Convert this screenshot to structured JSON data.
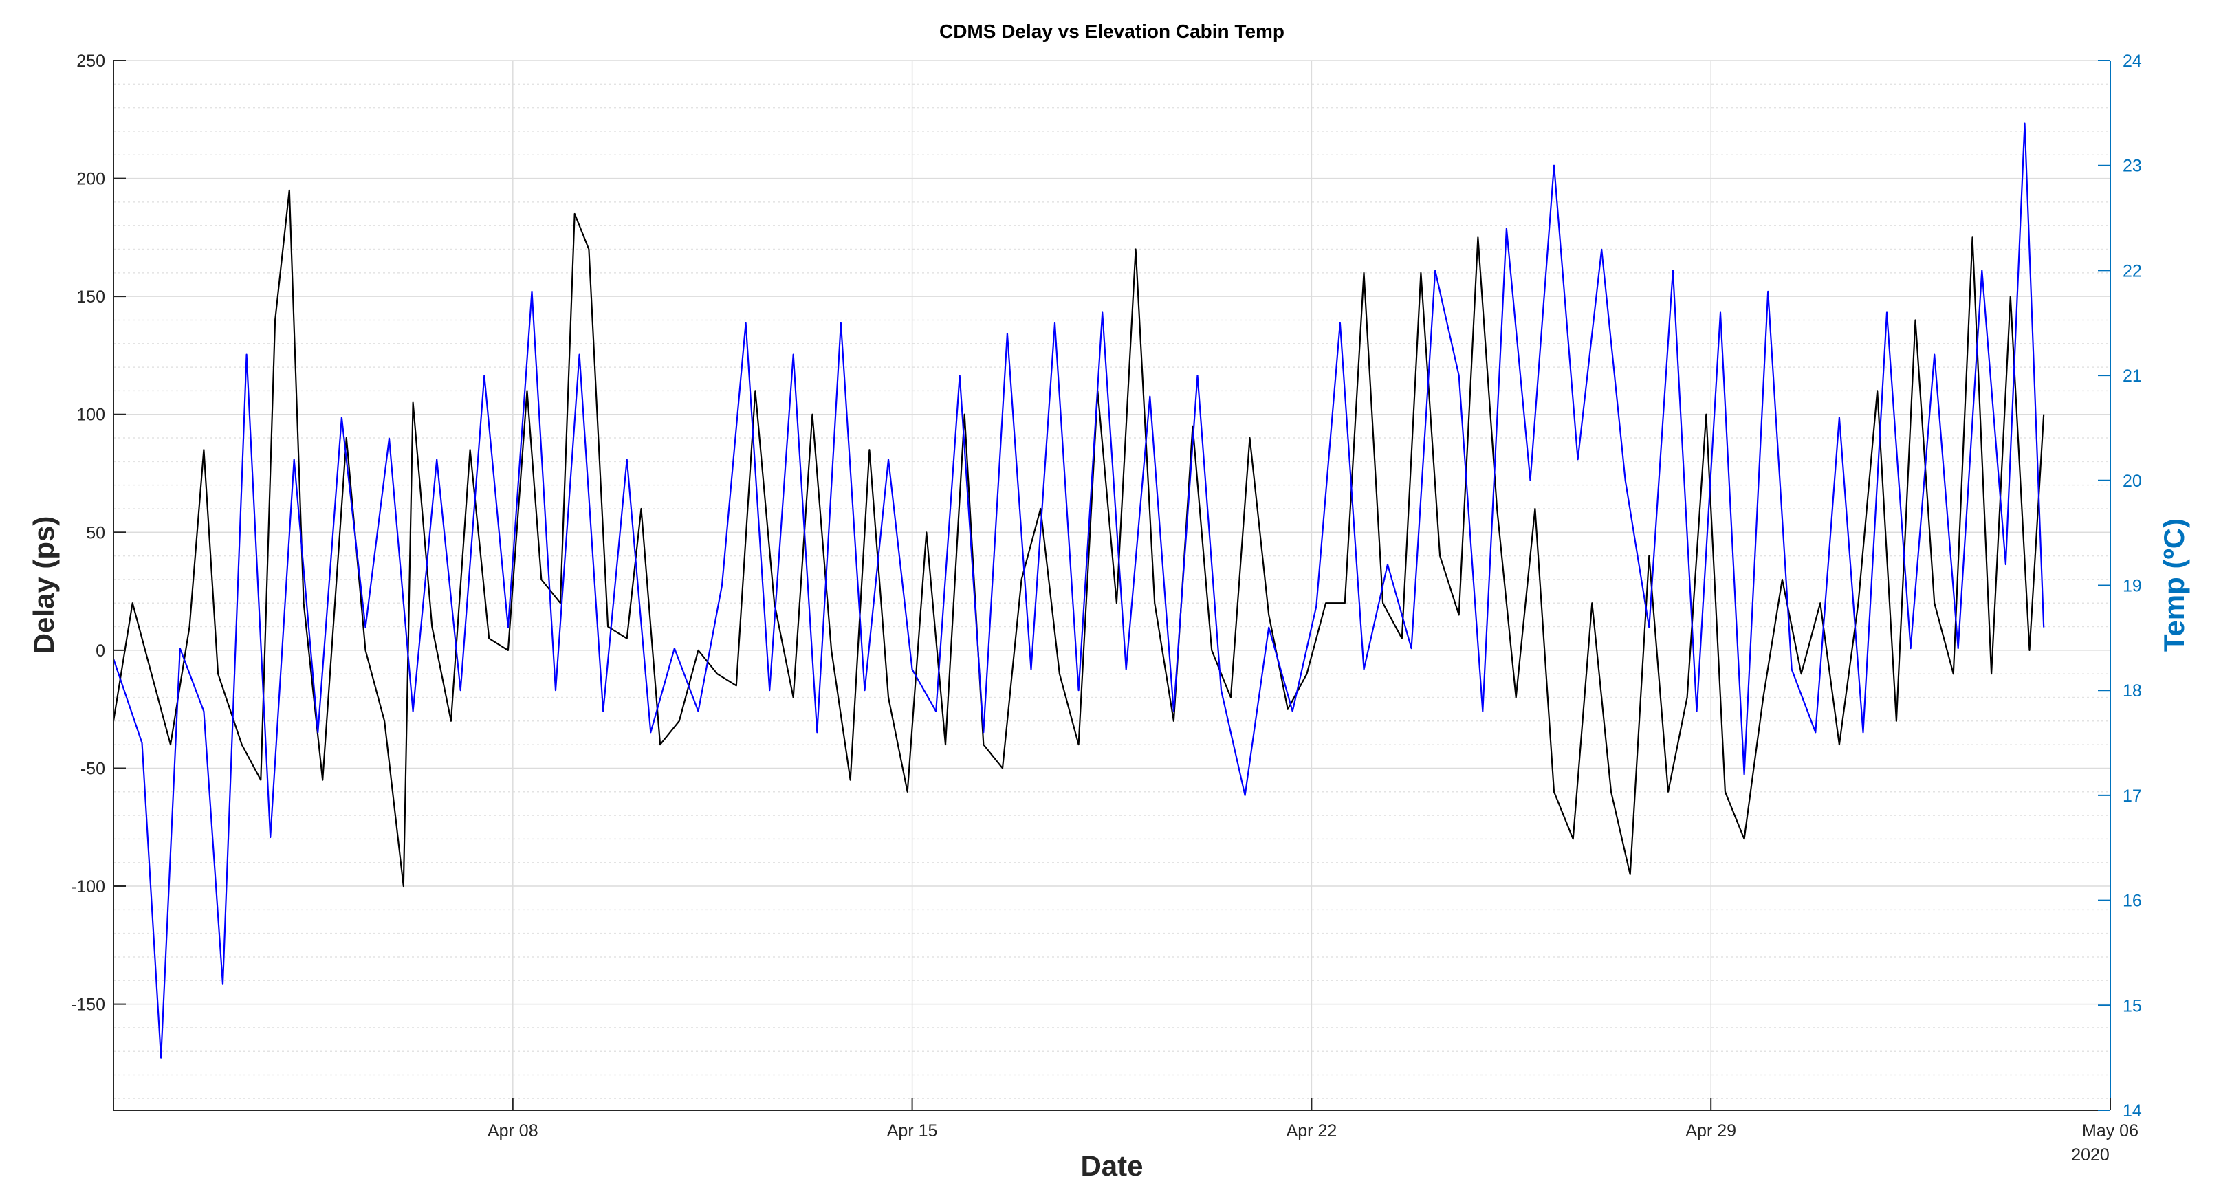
{
  "chart_data": {
    "type": "line",
    "title": "CDMS Delay vs Elevation Cabin Temp",
    "xlabel": "Date",
    "x_year_label": "2020",
    "x_axis": {
      "start": "2020-04-01",
      "end": "2020-05-06",
      "tick_dates": [
        "2020-04-08",
        "2020-04-15",
        "2020-04-22",
        "2020-04-29",
        "2020-05-06"
      ],
      "tick_labels": [
        "Apr 08",
        "Apr 15",
        "Apr 22",
        "Apr 29",
        "May 06"
      ]
    },
    "y_left": {
      "label": "Delay (ps)",
      "lim": [
        -195,
        250
      ],
      "ticks": [
        -150,
        -100,
        -50,
        0,
        50,
        100,
        150,
        200,
        250
      ],
      "color": "#262626"
    },
    "y_right": {
      "label": "Temp (ºC)",
      "lim": [
        14,
        24
      ],
      "ticks": [
        14,
        15,
        16,
        17,
        18,
        19,
        20,
        21,
        22,
        23,
        24
      ],
      "color": "#0072BD"
    },
    "grid": "on",
    "minor_grid": "on",
    "series": [
      {
        "axis": "left",
        "color": "#000000",
        "points": [
          [
            "2020-04-01 00:00",
            -30
          ],
          [
            "2020-04-01 08:00",
            20
          ],
          [
            "2020-04-01 16:00",
            -10
          ],
          [
            "2020-04-02 00:00",
            -40
          ],
          [
            "2020-04-02 08:00",
            10
          ],
          [
            "2020-04-02 14:00",
            85
          ],
          [
            "2020-04-02 20:00",
            -10
          ],
          [
            "2020-04-03 06:00",
            -40
          ],
          [
            "2020-04-03 14:00",
            -55
          ],
          [
            "2020-04-03 20:00",
            140
          ],
          [
            "2020-04-04 02:00",
            195
          ],
          [
            "2020-04-04 08:00",
            20
          ],
          [
            "2020-04-04 16:00",
            -55
          ],
          [
            "2020-04-05 02:00",
            90
          ],
          [
            "2020-04-05 10:00",
            0
          ],
          [
            "2020-04-05 18:00",
            -30
          ],
          [
            "2020-04-06 02:00",
            -100
          ],
          [
            "2020-04-06 06:00",
            105
          ],
          [
            "2020-04-06 14:00",
            10
          ],
          [
            "2020-04-06 22:00",
            -30
          ],
          [
            "2020-04-07 06:00",
            85
          ],
          [
            "2020-04-07 14:00",
            5
          ],
          [
            "2020-04-07 22:00",
            0
          ],
          [
            "2020-04-08 06:00",
            110
          ],
          [
            "2020-04-08 12:00",
            30
          ],
          [
            "2020-04-08 20:00",
            20
          ],
          [
            "2020-04-09 02:00",
            185
          ],
          [
            "2020-04-09 08:00",
            170
          ],
          [
            "2020-04-09 16:00",
            10
          ],
          [
            "2020-04-10 00:00",
            5
          ],
          [
            "2020-04-10 06:00",
            60
          ],
          [
            "2020-04-10 14:00",
            -40
          ],
          [
            "2020-04-10 22:00",
            -30
          ],
          [
            "2020-04-11 06:00",
            0
          ],
          [
            "2020-04-11 14:00",
            -10
          ],
          [
            "2020-04-11 22:00",
            -15
          ],
          [
            "2020-04-12 06:00",
            110
          ],
          [
            "2020-04-12 14:00",
            20
          ],
          [
            "2020-04-12 22:00",
            -20
          ],
          [
            "2020-04-13 06:00",
            100
          ],
          [
            "2020-04-13 14:00",
            0
          ],
          [
            "2020-04-13 22:00",
            -55
          ],
          [
            "2020-04-14 06:00",
            85
          ],
          [
            "2020-04-14 14:00",
            -20
          ],
          [
            "2020-04-14 22:00",
            -60
          ],
          [
            "2020-04-15 06:00",
            50
          ],
          [
            "2020-04-15 14:00",
            -40
          ],
          [
            "2020-04-15 22:00",
            100
          ],
          [
            "2020-04-16 06:00",
            -40
          ],
          [
            "2020-04-16 14:00",
            -50
          ],
          [
            "2020-04-16 22:00",
            30
          ],
          [
            "2020-04-17 06:00",
            60
          ],
          [
            "2020-04-17 14:00",
            -10
          ],
          [
            "2020-04-17 22:00",
            -40
          ],
          [
            "2020-04-18 06:00",
            110
          ],
          [
            "2020-04-18 14:00",
            20
          ],
          [
            "2020-04-18 22:00",
            170
          ],
          [
            "2020-04-19 06:00",
            20
          ],
          [
            "2020-04-19 14:00",
            -30
          ],
          [
            "2020-04-19 22:00",
            95
          ],
          [
            "2020-04-20 06:00",
            0
          ],
          [
            "2020-04-20 14:00",
            -20
          ],
          [
            "2020-04-20 22:00",
            90
          ],
          [
            "2020-04-21 06:00",
            15
          ],
          [
            "2020-04-21 14:00",
            -25
          ],
          [
            "2020-04-21 22:00",
            -10
          ],
          [
            "2020-04-22 06:00",
            20
          ],
          [
            "2020-04-22 14:00",
            20
          ],
          [
            "2020-04-22 22:00",
            160
          ],
          [
            "2020-04-23 06:00",
            20
          ],
          [
            "2020-04-23 14:00",
            5
          ],
          [
            "2020-04-23 22:00",
            160
          ],
          [
            "2020-04-24 06:00",
            40
          ],
          [
            "2020-04-24 14:00",
            15
          ],
          [
            "2020-04-24 22:00",
            175
          ],
          [
            "2020-04-25 06:00",
            60
          ],
          [
            "2020-04-25 14:00",
            -20
          ],
          [
            "2020-04-25 22:00",
            60
          ],
          [
            "2020-04-26 06:00",
            -60
          ],
          [
            "2020-04-26 14:00",
            -80
          ],
          [
            "2020-04-26 22:00",
            20
          ],
          [
            "2020-04-27 06:00",
            -60
          ],
          [
            "2020-04-27 14:00",
            -95
          ],
          [
            "2020-04-27 22:00",
            40
          ],
          [
            "2020-04-28 06:00",
            -60
          ],
          [
            "2020-04-28 14:00",
            -20
          ],
          [
            "2020-04-28 22:00",
            100
          ],
          [
            "2020-04-29 06:00",
            -60
          ],
          [
            "2020-04-29 14:00",
            -80
          ],
          [
            "2020-04-29 22:00",
            -20
          ],
          [
            "2020-04-30 06:00",
            30
          ],
          [
            "2020-04-30 14:00",
            -10
          ],
          [
            "2020-04-30 22:00",
            20
          ],
          [
            "2020-05-01 06:00",
            -40
          ],
          [
            "2020-05-01 14:00",
            20
          ],
          [
            "2020-05-01 22:00",
            110
          ],
          [
            "2020-05-02 06:00",
            -30
          ],
          [
            "2020-05-02 14:00",
            140
          ],
          [
            "2020-05-02 22:00",
            20
          ],
          [
            "2020-05-03 06:00",
            -10
          ],
          [
            "2020-05-03 14:00",
            175
          ],
          [
            "2020-05-03 22:00",
            -10
          ],
          [
            "2020-05-04 06:00",
            150
          ],
          [
            "2020-05-04 14:00",
            0
          ],
          [
            "2020-05-04 20:00",
            100
          ]
        ]
      },
      {
        "axis": "right",
        "color": "#0000FF",
        "points": [
          [
            "2020-04-01 00:00",
            18.3
          ],
          [
            "2020-04-01 12:00",
            17.5
          ],
          [
            "2020-04-01 20:00",
            14.5
          ],
          [
            "2020-04-02 04:00",
            18.4
          ],
          [
            "2020-04-02 14:00",
            17.8
          ],
          [
            "2020-04-02 22:00",
            15.2
          ],
          [
            "2020-04-03 08:00",
            21.2
          ],
          [
            "2020-04-03 18:00",
            16.6
          ],
          [
            "2020-04-04 04:00",
            20.2
          ],
          [
            "2020-04-04 14:00",
            17.6
          ],
          [
            "2020-04-05 00:00",
            20.6
          ],
          [
            "2020-04-05 10:00",
            18.6
          ],
          [
            "2020-04-05 20:00",
            20.4
          ],
          [
            "2020-04-06 06:00",
            17.8
          ],
          [
            "2020-04-06 16:00",
            20.2
          ],
          [
            "2020-04-07 02:00",
            18.0
          ],
          [
            "2020-04-07 12:00",
            21.0
          ],
          [
            "2020-04-07 22:00",
            18.6
          ],
          [
            "2020-04-08 08:00",
            21.8
          ],
          [
            "2020-04-08 18:00",
            18.0
          ],
          [
            "2020-04-09 04:00",
            21.2
          ],
          [
            "2020-04-09 14:00",
            17.8
          ],
          [
            "2020-04-10 00:00",
            20.2
          ],
          [
            "2020-04-10 10:00",
            17.6
          ],
          [
            "2020-04-10 20:00",
            18.4
          ],
          [
            "2020-04-11 06:00",
            17.8
          ],
          [
            "2020-04-11 16:00",
            19.0
          ],
          [
            "2020-04-12 02:00",
            21.5
          ],
          [
            "2020-04-12 12:00",
            18.0
          ],
          [
            "2020-04-12 22:00",
            21.2
          ],
          [
            "2020-04-13 08:00",
            17.6
          ],
          [
            "2020-04-13 18:00",
            21.5
          ],
          [
            "2020-04-14 04:00",
            18.0
          ],
          [
            "2020-04-14 14:00",
            20.2
          ],
          [
            "2020-04-15 00:00",
            18.2
          ],
          [
            "2020-04-15 10:00",
            17.8
          ],
          [
            "2020-04-15 20:00",
            21.0
          ],
          [
            "2020-04-16 06:00",
            17.6
          ],
          [
            "2020-04-16 16:00",
            21.4
          ],
          [
            "2020-04-17 02:00",
            18.2
          ],
          [
            "2020-04-17 12:00",
            21.5
          ],
          [
            "2020-04-17 22:00",
            18.0
          ],
          [
            "2020-04-18 08:00",
            21.6
          ],
          [
            "2020-04-18 18:00",
            18.2
          ],
          [
            "2020-04-19 04:00",
            20.8
          ],
          [
            "2020-04-19 14:00",
            17.8
          ],
          [
            "2020-04-20 00:00",
            21.0
          ],
          [
            "2020-04-20 10:00",
            18.0
          ],
          [
            "2020-04-20 20:00",
            17.0
          ],
          [
            "2020-04-21 06:00",
            18.6
          ],
          [
            "2020-04-21 16:00",
            17.8
          ],
          [
            "2020-04-22 02:00",
            18.8
          ],
          [
            "2020-04-22 12:00",
            21.5
          ],
          [
            "2020-04-22 22:00",
            18.2
          ],
          [
            "2020-04-23 08:00",
            19.2
          ],
          [
            "2020-04-23 18:00",
            18.4
          ],
          [
            "2020-04-24 04:00",
            22.0
          ],
          [
            "2020-04-24 14:00",
            21.0
          ],
          [
            "2020-04-25 00:00",
            17.8
          ],
          [
            "2020-04-25 10:00",
            22.4
          ],
          [
            "2020-04-25 20:00",
            20.0
          ],
          [
            "2020-04-26 06:00",
            23.0
          ],
          [
            "2020-04-26 16:00",
            20.2
          ],
          [
            "2020-04-27 02:00",
            22.2
          ],
          [
            "2020-04-27 12:00",
            20.0
          ],
          [
            "2020-04-27 22:00",
            18.6
          ],
          [
            "2020-04-28 08:00",
            22.0
          ],
          [
            "2020-04-28 18:00",
            17.8
          ],
          [
            "2020-04-29 04:00",
            21.6
          ],
          [
            "2020-04-29 14:00",
            17.2
          ],
          [
            "2020-04-30 00:00",
            21.8
          ],
          [
            "2020-04-30 10:00",
            18.2
          ],
          [
            "2020-04-30 20:00",
            17.6
          ],
          [
            "2020-05-01 06:00",
            20.6
          ],
          [
            "2020-05-01 16:00",
            17.6
          ],
          [
            "2020-05-02 02:00",
            21.6
          ],
          [
            "2020-05-02 12:00",
            18.4
          ],
          [
            "2020-05-02 22:00",
            21.2
          ],
          [
            "2020-05-03 08:00",
            18.4
          ],
          [
            "2020-05-03 18:00",
            22.0
          ],
          [
            "2020-05-04 04:00",
            19.2
          ],
          [
            "2020-05-04 12:00",
            23.4
          ],
          [
            "2020-05-04 20:00",
            18.6
          ]
        ]
      }
    ]
  }
}
